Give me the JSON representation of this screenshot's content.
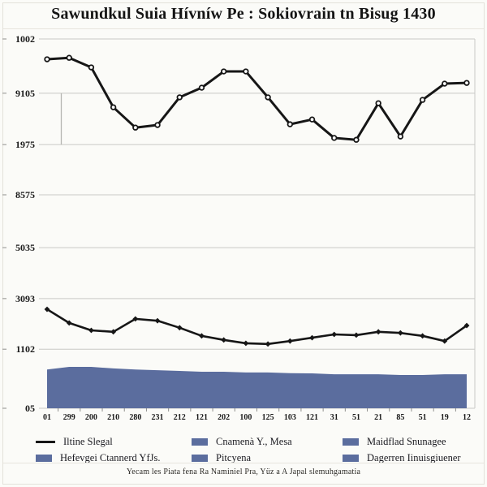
{
  "title": "Sawundkul Suia Hívníw Pe : Sokiovrain tn Bisug 1430",
  "caption": "Yecam les Piata fena Ra Naminiel Pra, Yüz a A Japal slemuhgamatia",
  "colors": {
    "line": "#161616",
    "area": "#5b6d9e",
    "grid": "#c9c9c6",
    "tick": "#8f8f8c",
    "text": "#1a1a1a",
    "background": "#fbfbf8"
  },
  "legend": {
    "items": [
      {
        "label": "Iltine Slegal",
        "swatch": "line"
      },
      {
        "label": "Hefevgei Ctannerd YfJs.",
        "swatch": "square"
      },
      {
        "label": "Cnamenà Y., Mesa",
        "swatch": "square"
      },
      {
        "label": "Pitcyena",
        "swatch": "square"
      },
      {
        "label": "Maidflad Snunagee",
        "swatch": "square"
      },
      {
        "label": "Dagerren Iinuisgiuener",
        "swatch": "square"
      }
    ]
  },
  "chart_data": {
    "type": "line+area",
    "title": "Sawundkul Suia Hívníw Pe : Sokiovrain tn Bisug 1430",
    "xlabel": "",
    "ylabel": "",
    "ylim": [
      0,
      10000
    ],
    "grid": "horizontal",
    "legend_position": "bottom",
    "x_tick_labels": [
      "01",
      "299",
      "200",
      "210",
      "280",
      "231",
      "212",
      "121",
      "202",
      "100",
      "125",
      "103",
      "121",
      "31",
      "51",
      "21",
      "85",
      "51",
      "19",
      "12"
    ],
    "y_gridlines": [
      {
        "label": "1002",
        "value": 10000
      },
      {
        "label": "9105",
        "value": 8530
      },
      {
        "label": "1975",
        "value": 7140
      },
      {
        "label": "8575",
        "value": 5780
      },
      {
        "label": "5035",
        "value": 4350
      },
      {
        "label": "3093",
        "value": 2970
      },
      {
        "label": "1102",
        "value": 1600
      },
      {
        "label": "05",
        "value": 0
      }
    ],
    "series": [
      {
        "name": "Iltine Slegal",
        "type": "line",
        "marker": "circle-open",
        "values": [
          9450,
          9490,
          9230,
          8150,
          7600,
          7670,
          8420,
          8680,
          9120,
          9120,
          8420,
          7690,
          7820,
          7320,
          7270,
          8260,
          7360,
          8350,
          8790,
          8810
        ]
      },
      {
        "name": "Cnamenà Y., Mesa",
        "type": "line",
        "marker": "diamond",
        "values": [
          2680,
          2310,
          2110,
          2070,
          2420,
          2370,
          2180,
          1960,
          1850,
          1760,
          1740,
          1820,
          1910,
          2000,
          1980,
          2070,
          2040,
          1960,
          1820,
          2240
        ]
      },
      {
        "name": "Hefevgei Ctannerd YfJs.",
        "type": "area",
        "values": [
          1050,
          1120,
          1120,
          1080,
          1050,
          1030,
          1010,
          990,
          990,
          970,
          970,
          950,
          945,
          920,
          920,
          920,
          900,
          900,
          920,
          920
        ]
      }
    ]
  }
}
